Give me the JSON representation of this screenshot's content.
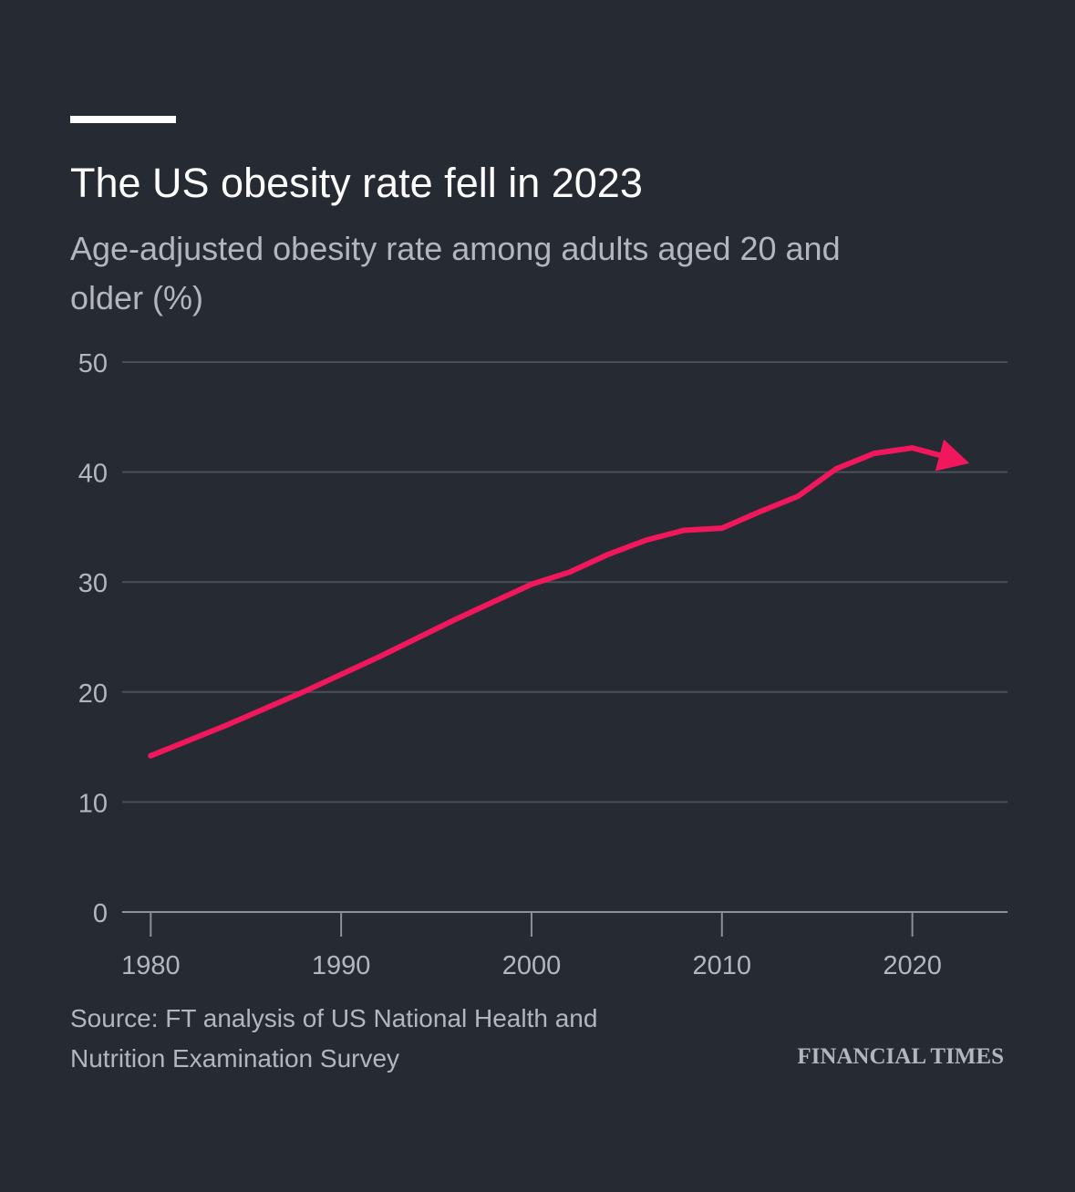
{
  "header": {
    "title": "The US obesity rate fell in 2023",
    "subtitle": "Age-adjusted obesity rate among adults aged 20 and older (%)"
  },
  "footer": {
    "source": "Source: FT analysis of US National Health and Nutrition Examination Survey",
    "brand": "FINANCIAL TIMES"
  },
  "colors": {
    "background": "#262a33",
    "line": "#f0175c",
    "grid": "#4b4f58",
    "axis": "#8d9098",
    "text_muted": "#b3b6bd",
    "title": "#ffffff"
  },
  "chart_data": {
    "type": "line",
    "title": "The US obesity rate fell in 2023",
    "subtitle": "Age-adjusted obesity rate among adults aged 20 and older (%)",
    "xlabel": "",
    "ylabel": "",
    "xlim": [
      1978.5,
      2025
    ],
    "ylim": [
      0,
      50
    ],
    "x_ticks": [
      1980,
      1990,
      2000,
      2010,
      2020
    ],
    "x_tick_labels": [
      "1980",
      "1990",
      "2000",
      "2010",
      "2020"
    ],
    "y_ticks": [
      0,
      10,
      20,
      30,
      40,
      50
    ],
    "y_tick_labels": [
      "0",
      "10",
      "20",
      "30",
      "40",
      "50"
    ],
    "grid": true,
    "legend": "none",
    "series": [
      {
        "color": "#f0175c",
        "end_marker": "arrow",
        "x": [
          1980,
          1984,
          1988,
          1992,
          1996,
          2000,
          2002,
          2004,
          2006,
          2008,
          2010,
          2012,
          2014,
          2016,
          2018,
          2020,
          2023
        ],
        "y": [
          14.2,
          17.0,
          20.0,
          23.2,
          26.6,
          29.8,
          30.9,
          32.5,
          33.8,
          34.7,
          34.9,
          36.4,
          37.8,
          40.3,
          41.7,
          42.2,
          40.8
        ]
      }
    ]
  }
}
